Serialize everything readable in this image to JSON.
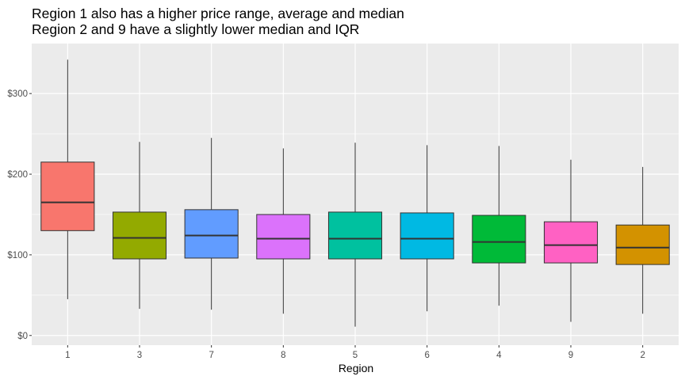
{
  "chart_data": {
    "type": "boxplot",
    "title_lines": [
      "Region 1 also has a higher price range, average and median",
      "Region 2 and 9 have a slightly lower median and IQR"
    ],
    "xlabel": "Region",
    "ylabel": "",
    "ylim": [
      -12,
      362
    ],
    "y_ticks": [
      0,
      100,
      200,
      300
    ],
    "y_tick_labels": [
      "$0",
      "$100",
      "$200",
      "$300"
    ],
    "grid": true,
    "legend": "none",
    "categories": [
      "1",
      "3",
      "7",
      "8",
      "5",
      "6",
      "4",
      "9",
      "2"
    ],
    "boxes": [
      {
        "label": "1",
        "min": 45,
        "q1": 130,
        "median": 165,
        "q3": 215,
        "max": 342,
        "color": "#F8766D"
      },
      {
        "label": "3",
        "min": 33,
        "q1": 95,
        "median": 121,
        "q3": 153,
        "max": 240,
        "color": "#93AA00"
      },
      {
        "label": "7",
        "min": 32,
        "q1": 96,
        "median": 124,
        "q3": 156,
        "max": 245,
        "color": "#619CFF"
      },
      {
        "label": "8",
        "min": 27,
        "q1": 95,
        "median": 120,
        "q3": 150,
        "max": 232,
        "color": "#DB72FB"
      },
      {
        "label": "5",
        "min": 11,
        "q1": 95,
        "median": 120,
        "q3": 153,
        "max": 239,
        "color": "#00C19F"
      },
      {
        "label": "6",
        "min": 30,
        "q1": 95,
        "median": 120,
        "q3": 152,
        "max": 236,
        "color": "#00B9E3"
      },
      {
        "label": "4",
        "min": 37,
        "q1": 90,
        "median": 116,
        "q3": 149,
        "max": 235,
        "color": "#00BA38"
      },
      {
        "label": "9",
        "min": 17,
        "q1": 90,
        "median": 112,
        "q3": 141,
        "max": 218,
        "color": "#FF61C3"
      },
      {
        "label": "2",
        "min": 27,
        "q1": 88,
        "median": 109,
        "q3": 137,
        "max": 209,
        "color": "#D39200"
      }
    ]
  },
  "colors": {
    "panel_background": "#EBEBEB",
    "grid_major": "#FFFFFF",
    "box_outline": "#333333"
  }
}
